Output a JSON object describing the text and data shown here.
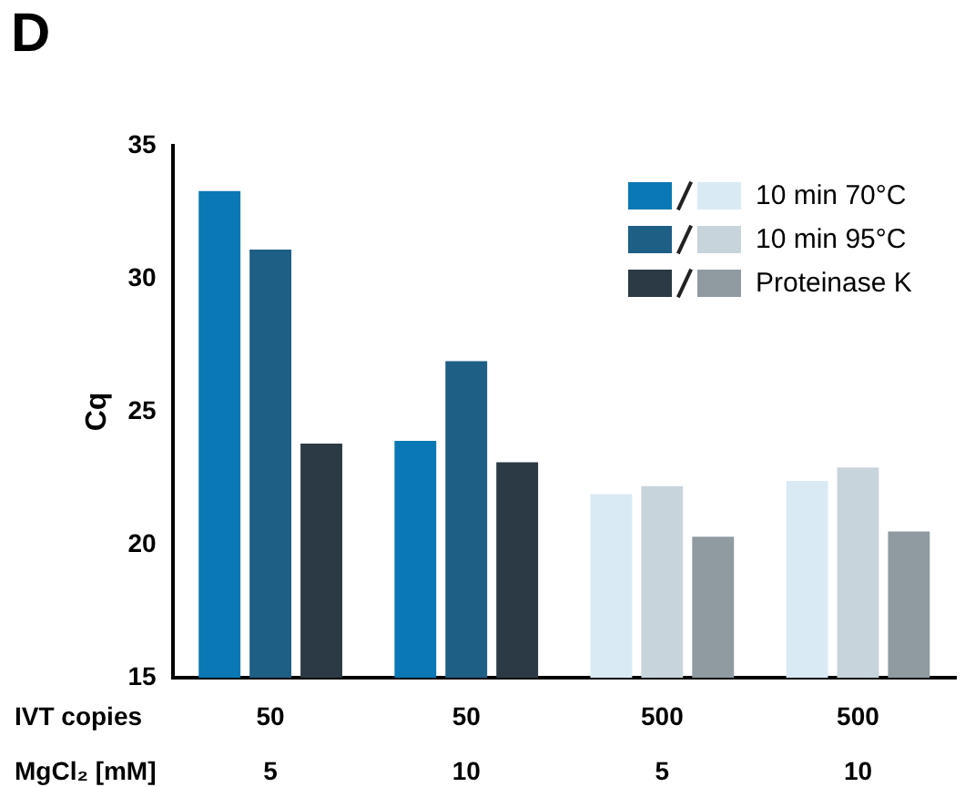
{
  "chart_data": {
    "type": "bar",
    "ylabel": "Cq",
    "xlabel": "IVT copies\nMgCl₂ [mM]",
    "annotations": [
      "D"
    ],
    "categories": [
      "50\n5",
      "50\n10",
      "500\n5",
      "500\n10"
    ],
    "ylim": [
      15,
      35
    ],
    "yticks": [
      15,
      20,
      25,
      30,
      35
    ],
    "grid": false,
    "legend": "top right",
    "series": [
      {
        "name": "10 min 70°C",
        "color": "#0a78b4",
        "colors": [
          "#0a78b4",
          "#0a78b4",
          "#d9eaf5",
          "#d9eaf5"
        ],
        "values": [
          33.3,
          23.9,
          21.9,
          22.4
        ]
      },
      {
        "name": "10 min 95°C",
        "color": "#1d5f85",
        "colors": [
          "#1d5f85",
          "#1d5f85",
          "#c8d4dc",
          "#c8d4dc"
        ],
        "values": [
          31.1,
          26.9,
          22.2,
          22.9
        ]
      },
      {
        "name": "Proteinase K",
        "color": "#2b3a44",
        "colors": [
          "#2b3a44",
          "#2b3a44",
          "#8f9aa1",
          "#8f9aa1"
        ],
        "values": [
          23.8,
          23.1,
          20.3,
          20.5
        ]
      }
    ]
  }
}
